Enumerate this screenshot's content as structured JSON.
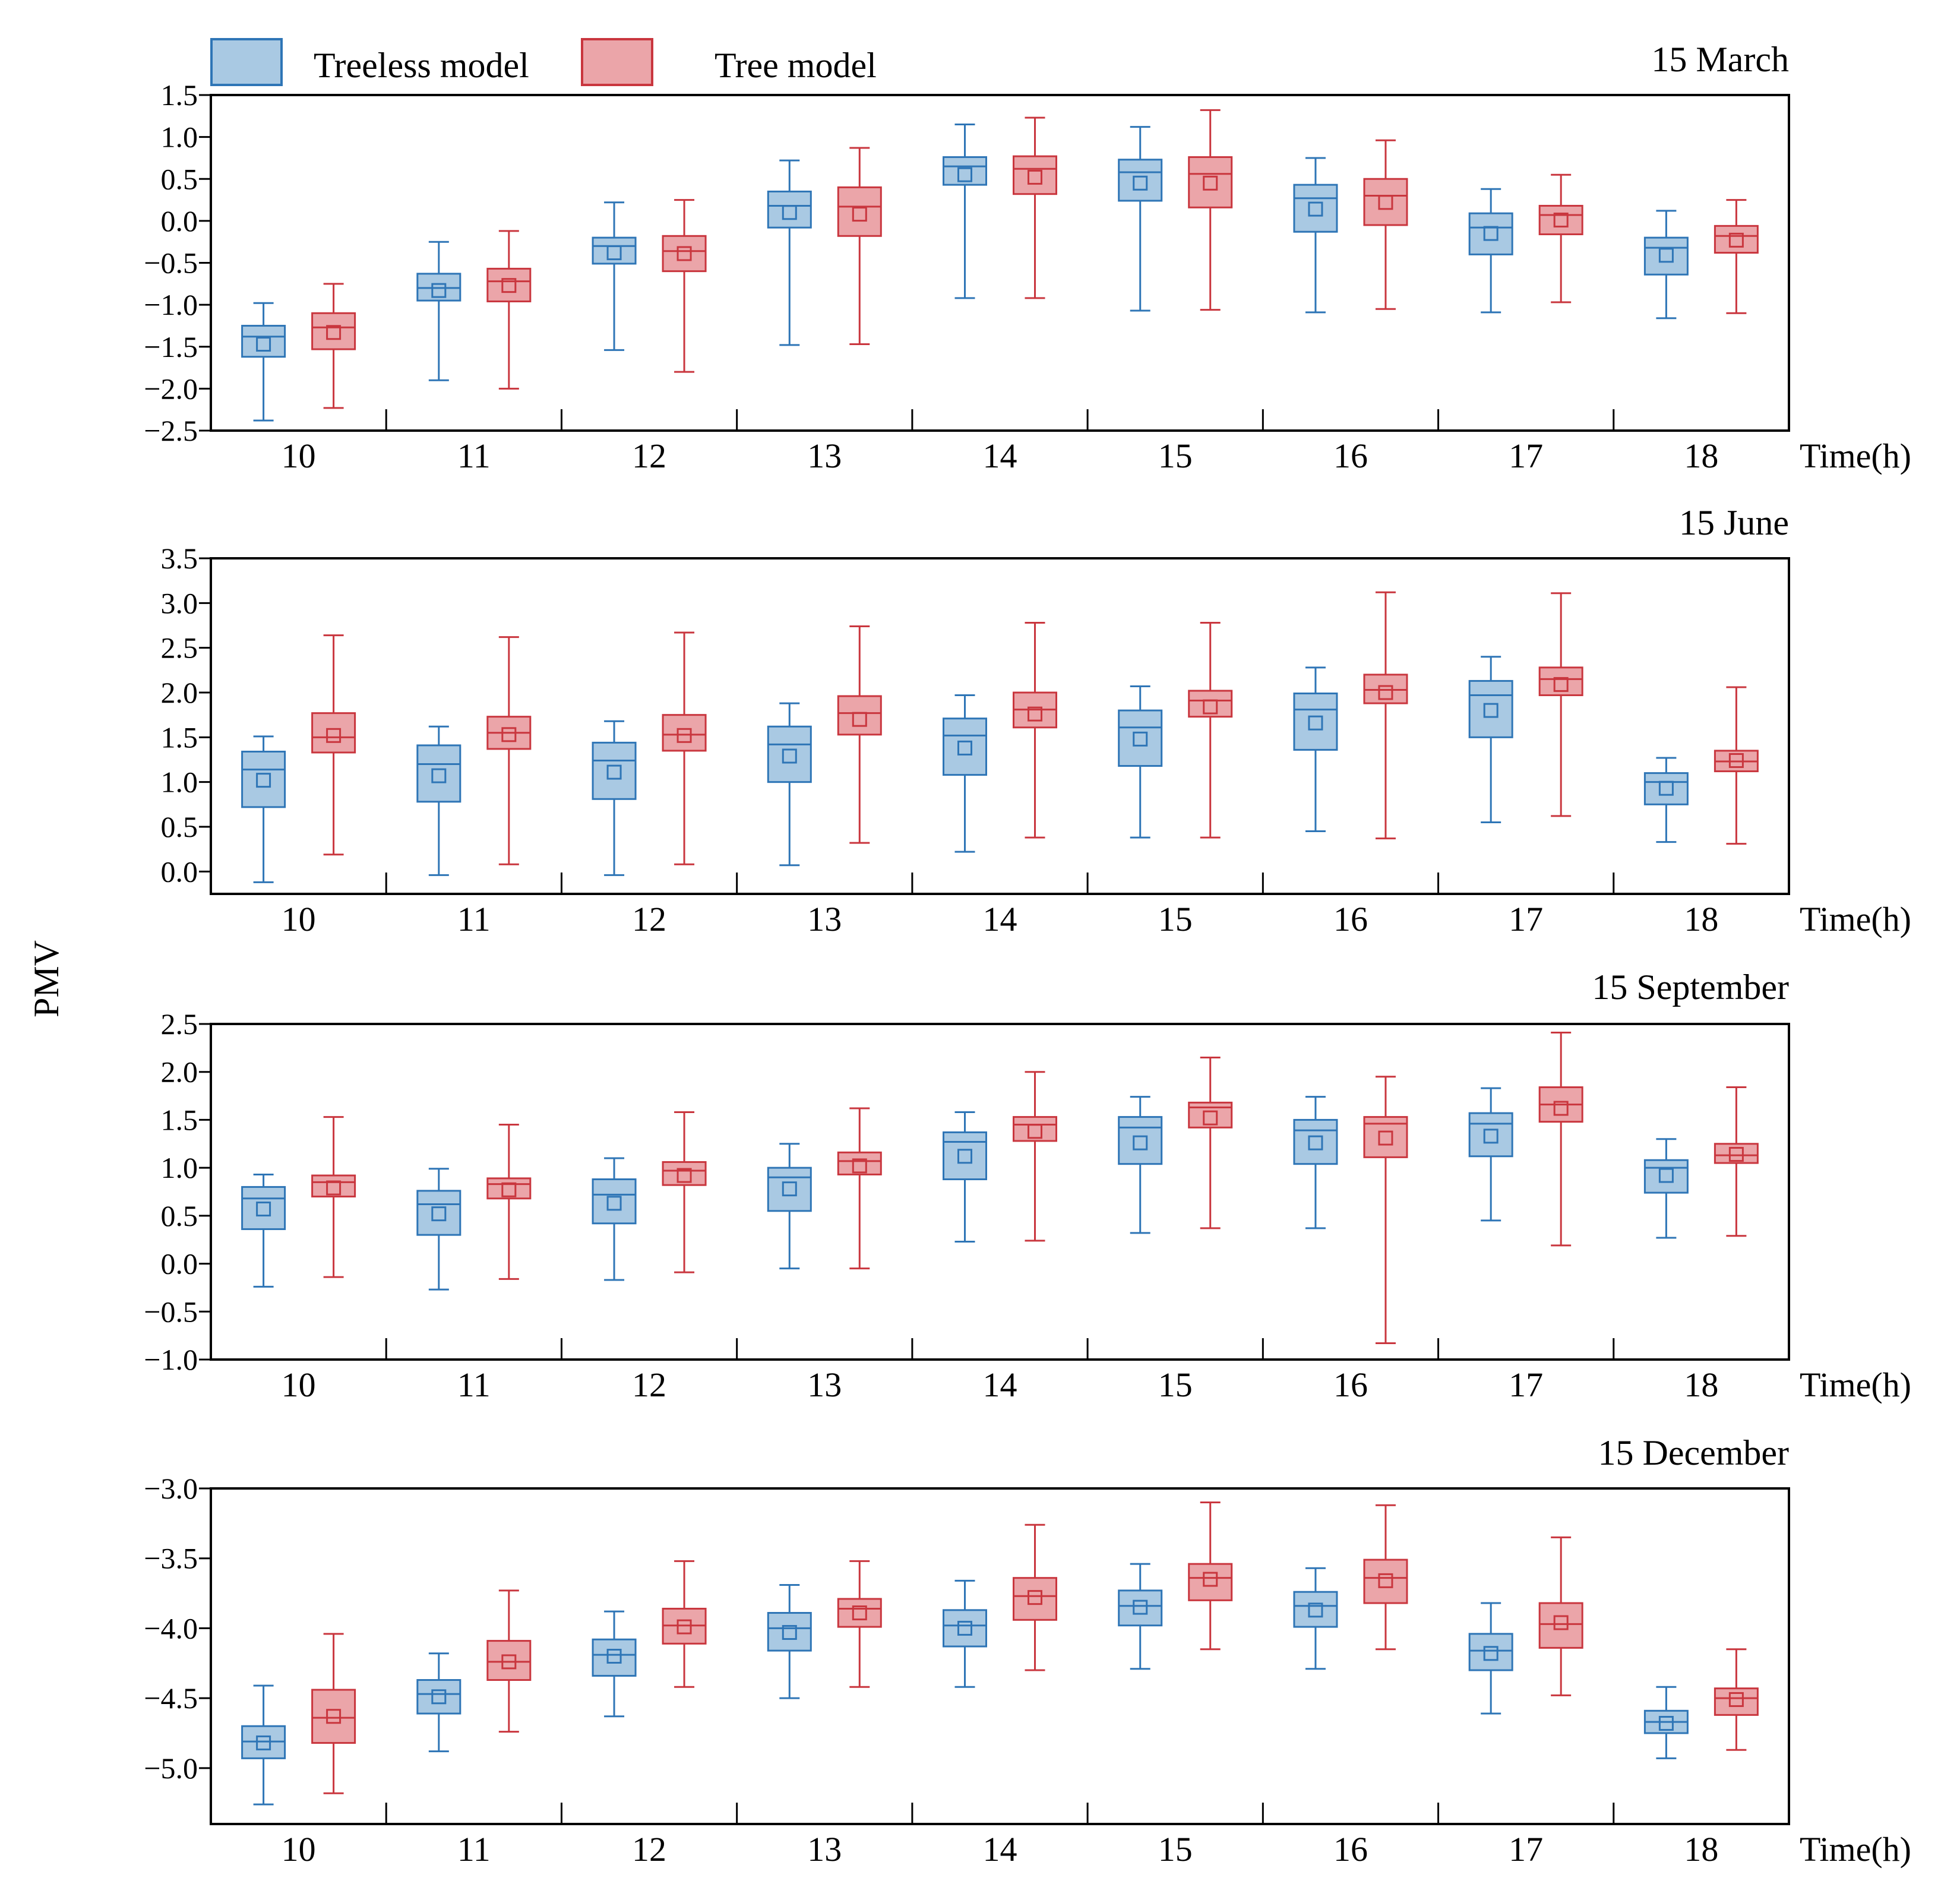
{
  "legend": [
    {
      "name": "Treeless model",
      "color": "#2E75B6",
      "fill": "#A9C9E3"
    },
    {
      "name": "Tree model",
      "color": "#C9363E",
      "fill": "#EBA5A9"
    }
  ],
  "chart_data": {
    "type": "box",
    "ylabel": "PMV",
    "xlabel": "Time(h)",
    "categories": [
      "10",
      "11",
      "12",
      "13",
      "14",
      "15",
      "16",
      "17",
      "18"
    ],
    "series_names": [
      "Treeless model",
      "Tree model"
    ],
    "panels": [
      {
        "title": "15 March",
        "ylim": [
          -2.5,
          1.5
        ],
        "yticks": [
          -2.5,
          -2.0,
          -1.5,
          -1.0,
          -0.5,
          0.0,
          0.5,
          1.0,
          1.5
        ],
        "ytick_labels": [
          "−2.5",
          "−2.0",
          "−1.5",
          "−1.0",
          "−0.5",
          "0.0",
          "0.5",
          "1.0",
          "1.5"
        ],
        "series": [
          {
            "name": "Treeless model",
            "boxes": [
              {
                "min": -2.38,
                "q1": -1.62,
                "median": -1.38,
                "q3": -1.25,
                "max": -0.98,
                "mean": -1.47
              },
              {
                "min": -1.9,
                "q1": -0.95,
                "median": -0.8,
                "q3": -0.63,
                "max": -0.25,
                "mean": -0.83
              },
              {
                "min": -1.54,
                "q1": -0.51,
                "median": -0.3,
                "q3": -0.2,
                "max": 0.22,
                "mean": -0.38
              },
              {
                "min": -1.48,
                "q1": -0.08,
                "median": 0.18,
                "q3": 0.35,
                "max": 0.72,
                "mean": 0.1
              },
              {
                "min": -0.92,
                "q1": 0.43,
                "median": 0.65,
                "q3": 0.76,
                "max": 1.15,
                "mean": 0.55
              },
              {
                "min": -1.07,
                "q1": 0.24,
                "median": 0.58,
                "q3": 0.73,
                "max": 1.12,
                "mean": 0.45
              },
              {
                "min": -1.09,
                "q1": -0.13,
                "median": 0.27,
                "q3": 0.43,
                "max": 0.75,
                "mean": 0.14
              },
              {
                "min": -1.09,
                "q1": -0.4,
                "median": -0.08,
                "q3": 0.09,
                "max": 0.38,
                "mean": -0.15
              },
              {
                "min": -1.16,
                "q1": -0.64,
                "median": -0.32,
                "q3": -0.2,
                "max": 0.12,
                "mean": -0.41
              }
            ]
          },
          {
            "name": "Tree model",
            "boxes": [
              {
                "min": -2.23,
                "q1": -1.53,
                "median": -1.27,
                "q3": -1.1,
                "max": -0.75,
                "mean": -1.33
              },
              {
                "min": -2.0,
                "q1": -0.96,
                "median": -0.72,
                "q3": -0.57,
                "max": -0.12,
                "mean": -0.77
              },
              {
                "min": -1.8,
                "q1": -0.6,
                "median": -0.36,
                "q3": -0.18,
                "max": 0.25,
                "mean": -0.39
              },
              {
                "min": -1.47,
                "q1": -0.18,
                "median": 0.17,
                "q3": 0.4,
                "max": 0.87,
                "mean": 0.08
              },
              {
                "min": -0.92,
                "q1": 0.32,
                "median": 0.62,
                "q3": 0.77,
                "max": 1.23,
                "mean": 0.52
              },
              {
                "min": -1.06,
                "q1": 0.16,
                "median": 0.56,
                "q3": 0.76,
                "max": 1.32,
                "mean": 0.45
              },
              {
                "min": -1.05,
                "q1": -0.05,
                "median": 0.3,
                "q3": 0.5,
                "max": 0.96,
                "mean": 0.22
              },
              {
                "min": -0.97,
                "q1": -0.16,
                "median": 0.07,
                "q3": 0.18,
                "max": 0.55,
                "mean": 0.01
              },
              {
                "min": -1.1,
                "q1": -0.38,
                "median": -0.18,
                "q3": -0.06,
                "max": 0.25,
                "mean": -0.23
              }
            ]
          }
        ]
      },
      {
        "title": "15 June",
        "ylim": [
          -0.25,
          3.5
        ],
        "yticks": [
          0.0,
          0.5,
          1.0,
          1.5,
          2.0,
          2.5,
          3.0,
          3.5
        ],
        "ytick_labels": [
          "0.0",
          "0.5",
          "1.0",
          "1.5",
          "2.0",
          "2.5",
          "3.0",
          "3.5"
        ],
        "series": [
          {
            "name": "Treeless model",
            "boxes": [
              {
                "min": -0.12,
                "q1": 0.72,
                "median": 1.14,
                "q3": 1.34,
                "max": 1.51,
                "mean": 1.02
              },
              {
                "min": -0.04,
                "q1": 0.78,
                "median": 1.2,
                "q3": 1.41,
                "max": 1.62,
                "mean": 1.07
              },
              {
                "min": -0.04,
                "q1": 0.81,
                "median": 1.24,
                "q3": 1.44,
                "max": 1.68,
                "mean": 1.11
              },
              {
                "min": 0.07,
                "q1": 1.0,
                "median": 1.42,
                "q3": 1.62,
                "max": 1.88,
                "mean": 1.29
              },
              {
                "min": 0.22,
                "q1": 1.08,
                "median": 1.52,
                "q3": 1.71,
                "max": 1.97,
                "mean": 1.38
              },
              {
                "min": 0.38,
                "q1": 1.18,
                "median": 1.61,
                "q3": 1.8,
                "max": 2.07,
                "mean": 1.48
              },
              {
                "min": 0.45,
                "q1": 1.36,
                "median": 1.81,
                "q3": 1.99,
                "max": 2.28,
                "mean": 1.66
              },
              {
                "min": 0.55,
                "q1": 1.5,
                "median": 1.97,
                "q3": 2.13,
                "max": 2.4,
                "mean": 1.8
              },
              {
                "min": 0.33,
                "q1": 0.75,
                "median": 1.0,
                "q3": 1.1,
                "max": 1.27,
                "mean": 0.93
              }
            ]
          },
          {
            "name": "Tree model",
            "boxes": [
              {
                "min": 0.19,
                "q1": 1.33,
                "median": 1.5,
                "q3": 1.77,
                "max": 2.64,
                "mean": 1.52
              },
              {
                "min": 0.08,
                "q1": 1.37,
                "median": 1.55,
                "q3": 1.73,
                "max": 2.62,
                "mean": 1.53
              },
              {
                "min": 0.08,
                "q1": 1.35,
                "median": 1.53,
                "q3": 1.75,
                "max": 2.67,
                "mean": 1.52
              },
              {
                "min": 0.32,
                "q1": 1.53,
                "median": 1.77,
                "q3": 1.96,
                "max": 2.74,
                "mean": 1.7
              },
              {
                "min": 0.38,
                "q1": 1.61,
                "median": 1.81,
                "q3": 2.0,
                "max": 2.78,
                "mean": 1.76
              },
              {
                "min": 0.38,
                "q1": 1.73,
                "median": 1.91,
                "q3": 2.02,
                "max": 2.78,
                "mean": 1.84
              },
              {
                "min": 0.37,
                "q1": 1.88,
                "median": 2.03,
                "q3": 2.2,
                "max": 3.12,
                "mean": 2.0
              },
              {
                "min": 0.62,
                "q1": 1.97,
                "median": 2.15,
                "q3": 2.28,
                "max": 3.11,
                "mean": 2.09
              },
              {
                "min": 0.31,
                "q1": 1.12,
                "median": 1.23,
                "q3": 1.35,
                "max": 2.06,
                "mean": 1.24
              }
            ]
          }
        ]
      },
      {
        "title": "15 September",
        "ylim": [
          -1.0,
          2.5
        ],
        "yticks": [
          -1.0,
          -0.5,
          0.0,
          0.5,
          1.0,
          1.5,
          2.0,
          2.5
        ],
        "ytick_labels": [
          "−1.0",
          "−0.5",
          "0.0",
          "0.5",
          "1.0",
          "1.5",
          "2.0",
          "2.5"
        ],
        "series": [
          {
            "name": "Treeless model",
            "boxes": [
              {
                "min": -0.24,
                "q1": 0.36,
                "median": 0.68,
                "q3": 0.8,
                "max": 0.93,
                "mean": 0.57
              },
              {
                "min": -0.27,
                "q1": 0.3,
                "median": 0.62,
                "q3": 0.76,
                "max": 0.99,
                "mean": 0.52
              },
              {
                "min": -0.17,
                "q1": 0.42,
                "median": 0.72,
                "q3": 0.88,
                "max": 1.1,
                "mean": 0.63
              },
              {
                "min": -0.05,
                "q1": 0.55,
                "median": 0.9,
                "q3": 1.0,
                "max": 1.25,
                "mean": 0.78
              },
              {
                "min": 0.23,
                "q1": 0.88,
                "median": 1.27,
                "q3": 1.37,
                "max": 1.58,
                "mean": 1.12
              },
              {
                "min": 0.32,
                "q1": 1.04,
                "median": 1.42,
                "q3": 1.53,
                "max": 1.74,
                "mean": 1.26
              },
              {
                "min": 0.37,
                "q1": 1.04,
                "median": 1.39,
                "q3": 1.5,
                "max": 1.74,
                "mean": 1.26
              },
              {
                "min": 0.45,
                "q1": 1.12,
                "median": 1.46,
                "q3": 1.57,
                "max": 1.83,
                "mean": 1.33
              },
              {
                "min": 0.27,
                "q1": 0.74,
                "median": 1.0,
                "q3": 1.08,
                "max": 1.3,
                "mean": 0.92
              }
            ]
          },
          {
            "name": "Tree model",
            "boxes": [
              {
                "min": -0.14,
                "q1": 0.7,
                "median": 0.85,
                "q3": 0.92,
                "max": 1.53,
                "mean": 0.79
              },
              {
                "min": -0.16,
                "q1": 0.68,
                "median": 0.83,
                "q3": 0.89,
                "max": 1.45,
                "mean": 0.77
              },
              {
                "min": -0.09,
                "q1": 0.82,
                "median": 0.97,
                "q3": 1.06,
                "max": 1.58,
                "mean": 0.92
              },
              {
                "min": -0.05,
                "q1": 0.93,
                "median": 1.07,
                "q3": 1.16,
                "max": 1.62,
                "mean": 1.02
              },
              {
                "min": 0.24,
                "q1": 1.28,
                "median": 1.45,
                "q3": 1.53,
                "max": 2.0,
                "mean": 1.38
              },
              {
                "min": 0.37,
                "q1": 1.42,
                "median": 1.63,
                "q3": 1.68,
                "max": 2.15,
                "mean": 1.52
              },
              {
                "min": -0.83,
                "q1": 1.11,
                "median": 1.46,
                "q3": 1.53,
                "max": 1.95,
                "mean": 1.31
              },
              {
                "min": 0.19,
                "q1": 1.48,
                "median": 1.66,
                "q3": 1.84,
                "max": 2.41,
                "mean": 1.62
              },
              {
                "min": 0.29,
                "q1": 1.05,
                "median": 1.13,
                "q3": 1.25,
                "max": 1.84,
                "mean": 1.14
              }
            ]
          }
        ]
      },
      {
        "title": "15 December",
        "ylim": [
          -5.4,
          -3.0
        ],
        "yticks": [
          -5.0,
          -4.5,
          -4.0,
          -3.5,
          -3.0
        ],
        "ytick_labels": [
          "−5.0",
          "−4.5",
          "−4.0",
          "−3.5",
          "−3.0"
        ],
        "series": [
          {
            "name": "Treeless model",
            "boxes": [
              {
                "min": -5.26,
                "q1": -4.93,
                "median": -4.81,
                "q3": -4.7,
                "max": -4.41,
                "mean": -4.82
              },
              {
                "min": -4.88,
                "q1": -4.61,
                "median": -4.47,
                "q3": -4.37,
                "max": -4.18,
                "mean": -4.49
              },
              {
                "min": -4.63,
                "q1": -4.34,
                "median": -4.19,
                "q3": -4.08,
                "max": -3.88,
                "mean": -4.2
              },
              {
                "min": -4.5,
                "q1": -4.16,
                "median": -4.0,
                "q3": -3.89,
                "max": -3.69,
                "mean": -4.03
              },
              {
                "min": -4.42,
                "q1": -4.13,
                "median": -3.98,
                "q3": -3.87,
                "max": -3.66,
                "mean": -4.0
              },
              {
                "min": -4.29,
                "q1": -3.98,
                "median": -3.84,
                "q3": -3.73,
                "max": -3.54,
                "mean": -3.85
              },
              {
                "min": -4.29,
                "q1": -3.99,
                "median": -3.84,
                "q3": -3.74,
                "max": -3.57,
                "mean": -3.87
              },
              {
                "min": -4.61,
                "q1": -4.3,
                "median": -4.16,
                "q3": -4.04,
                "max": -3.82,
                "mean": -4.18
              },
              {
                "min": -4.93,
                "q1": -4.75,
                "median": -4.67,
                "q3": -4.59,
                "max": -4.42,
                "mean": -4.68
              }
            ]
          },
          {
            "name": "Tree model",
            "boxes": [
              {
                "min": -5.18,
                "q1": -4.82,
                "median": -4.64,
                "q3": -4.44,
                "max": -4.04,
                "mean": -4.63
              },
              {
                "min": -4.74,
                "q1": -4.37,
                "median": -4.24,
                "q3": -4.09,
                "max": -3.73,
                "mean": -4.24
              },
              {
                "min": -4.42,
                "q1": -4.11,
                "median": -3.98,
                "q3": -3.86,
                "max": -3.52,
                "mean": -3.99
              },
              {
                "min": -4.42,
                "q1": -3.99,
                "median": -3.86,
                "q3": -3.79,
                "max": -3.52,
                "mean": -3.89
              },
              {
                "min": -4.3,
                "q1": -3.94,
                "median": -3.77,
                "q3": -3.64,
                "max": -3.26,
                "mean": -3.78
              },
              {
                "min": -4.15,
                "q1": -3.8,
                "median": -3.64,
                "q3": -3.54,
                "max": -3.1,
                "mean": -3.65
              },
              {
                "min": -4.15,
                "q1": -3.82,
                "median": -3.64,
                "q3": -3.51,
                "max": -3.12,
                "mean": -3.66
              },
              {
                "min": -4.48,
                "q1": -4.14,
                "median": -3.97,
                "q3": -3.82,
                "max": -3.35,
                "mean": -3.96
              },
              {
                "min": -4.87,
                "q1": -4.62,
                "median": -4.5,
                "q3": -4.43,
                "max": -4.15,
                "mean": -4.51
              }
            ]
          }
        ]
      }
    ]
  }
}
